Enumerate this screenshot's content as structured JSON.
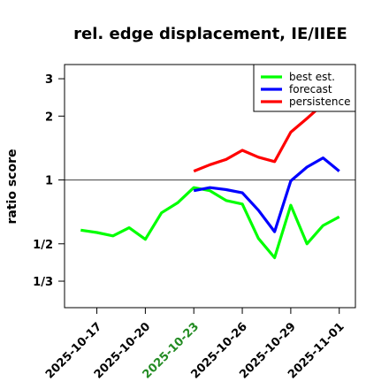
{
  "chart_data": {
    "type": "line",
    "title": "rel. edge displacement, IE/IIEE",
    "xlabel": "",
    "ylabel": "ratio score",
    "y_scale": "log",
    "ylim": [
      0.25,
      3.5
    ],
    "xlim": [
      "2025-10-15",
      "2025-11-02"
    ],
    "yticks": [
      {
        "value": 3,
        "label": "3"
      },
      {
        "value": 2,
        "label": "2"
      },
      {
        "value": 1,
        "label": "1"
      },
      {
        "value": 0.5,
        "label": "1/2"
      },
      {
        "value": 0.3333,
        "label": "1/3"
      }
    ],
    "xticks": [
      {
        "date": "2025-10-17",
        "label": "2025-10-17",
        "color": "#000000"
      },
      {
        "date": "2025-10-20",
        "label": "2025-10-20",
        "color": "#000000"
      },
      {
        "date": "2025-10-23",
        "label": "2025-10-23",
        "color": "#228b22"
      },
      {
        "date": "2025-10-26",
        "label": "2025-10-26",
        "color": "#000000"
      },
      {
        "date": "2025-10-29",
        "label": "2025-10-29",
        "color": "#000000"
      },
      {
        "date": "2025-11-01",
        "label": "2025-11-01",
        "color": "#000000"
      }
    ],
    "reference_line": 1,
    "grid": false,
    "legend_position": "top-right",
    "series": [
      {
        "name": "best est.",
        "color": "#00ff00",
        "points": [
          {
            "x": "2025-10-16",
            "y": 0.58
          },
          {
            "x": "2025-10-17",
            "y": 0.565
          },
          {
            "x": "2025-10-18",
            "y": 0.545
          },
          {
            "x": "2025-10-19",
            "y": 0.595
          },
          {
            "x": "2025-10-20",
            "y": 0.525
          },
          {
            "x": "2025-10-21",
            "y": 0.7
          },
          {
            "x": "2025-10-22",
            "y": 0.78
          },
          {
            "x": "2025-10-23",
            "y": 0.92
          },
          {
            "x": "2025-10-24",
            "y": 0.89
          },
          {
            "x": "2025-10-25",
            "y": 0.8
          },
          {
            "x": "2025-10-26",
            "y": 0.77
          },
          {
            "x": "2025-10-27",
            "y": 0.53
          },
          {
            "x": "2025-10-28",
            "y": 0.43
          },
          {
            "x": "2025-10-29",
            "y": 0.76
          },
          {
            "x": "2025-10-30",
            "y": 0.5
          },
          {
            "x": "2025-10-31",
            "y": 0.61
          },
          {
            "x": "2025-11-01",
            "y": 0.67
          }
        ]
      },
      {
        "name": "forecast",
        "color": "#0000ff",
        "points": [
          {
            "x": "2025-10-23",
            "y": 0.89
          },
          {
            "x": "2025-10-24",
            "y": 0.92
          },
          {
            "x": "2025-10-25",
            "y": 0.9
          },
          {
            "x": "2025-10-26",
            "y": 0.87
          },
          {
            "x": "2025-10-27",
            "y": 0.72
          },
          {
            "x": "2025-10-28",
            "y": 0.57
          },
          {
            "x": "2025-10-29",
            "y": 0.99
          },
          {
            "x": "2025-10-30",
            "y": 1.15
          },
          {
            "x": "2025-10-31",
            "y": 1.27
          },
          {
            "x": "2025-11-01",
            "y": 1.1
          }
        ]
      },
      {
        "name": "persistence",
        "color": "#ff0000",
        "points": [
          {
            "x": "2025-10-23",
            "y": 1.1
          },
          {
            "x": "2025-10-24",
            "y": 1.18
          },
          {
            "x": "2025-10-25",
            "y": 1.25
          },
          {
            "x": "2025-10-26",
            "y": 1.38
          },
          {
            "x": "2025-10-27",
            "y": 1.28
          },
          {
            "x": "2025-10-28",
            "y": 1.22
          },
          {
            "x": "2025-10-29",
            "y": 1.68
          },
          {
            "x": "2025-10-30",
            "y": 1.95
          },
          {
            "x": "2025-10-31",
            "y": 2.28
          },
          {
            "x": "2025-11-01",
            "y": 2.3
          }
        ]
      }
    ]
  }
}
